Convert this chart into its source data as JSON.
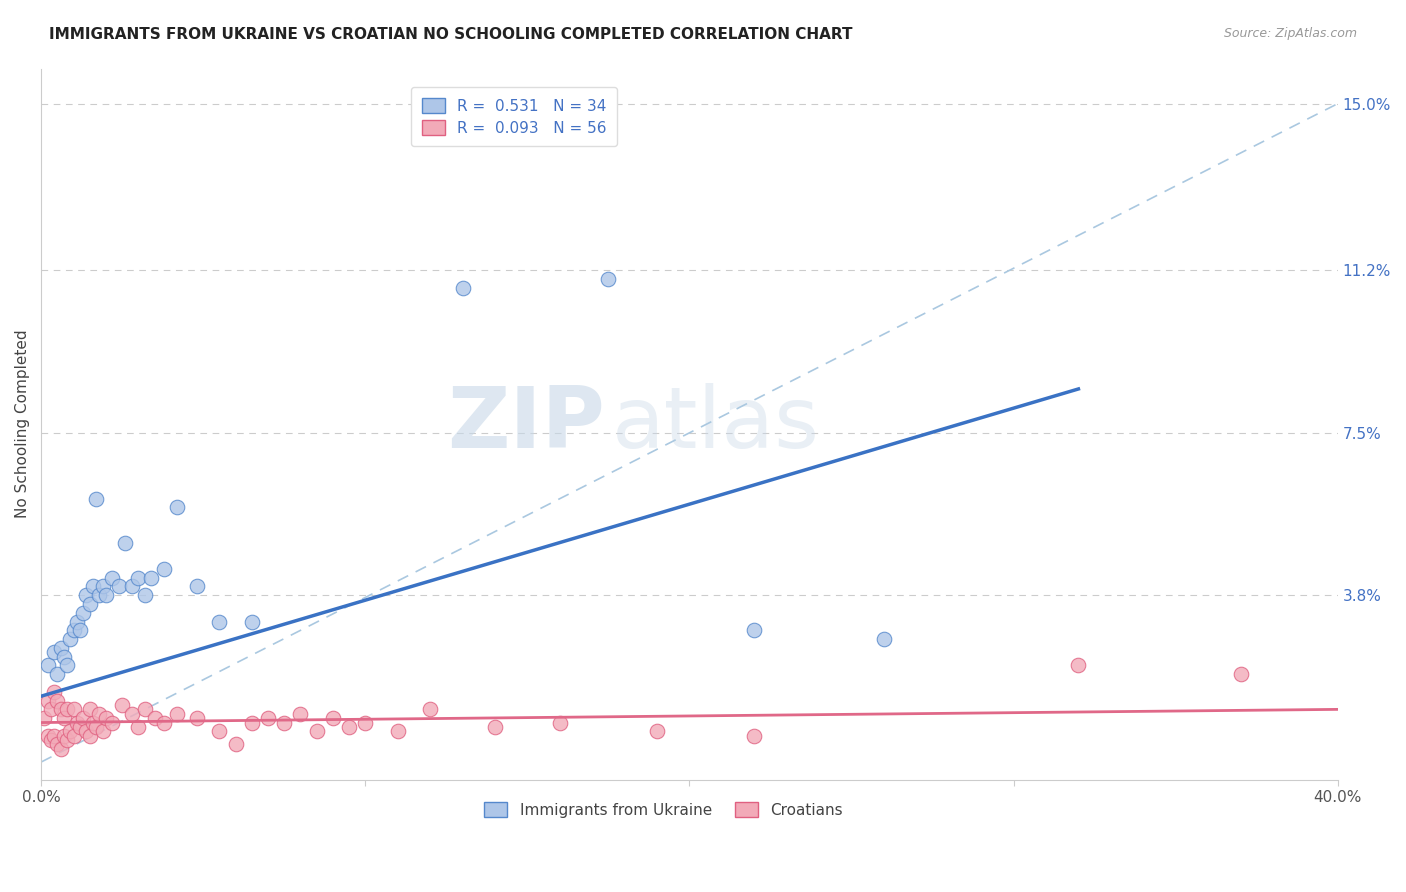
{
  "title": "IMMIGRANTS FROM UKRAINE VS CROATIAN NO SCHOOLING COMPLETED CORRELATION CHART",
  "source": "Source: ZipAtlas.com",
  "ylabel": "No Schooling Completed",
  "xlim": [
    0.0,
    0.4
  ],
  "ylim": [
    -0.004,
    0.158
  ],
  "right_yticks": [
    0.0,
    0.038,
    0.075,
    0.112,
    0.15
  ],
  "right_yticklabels": [
    "",
    "3.8%",
    "7.5%",
    "11.2%",
    "15.0%"
  ],
  "grid_yticks": [
    0.038,
    0.075,
    0.112,
    0.15
  ],
  "legend_R1": "0.531",
  "legend_N1": "34",
  "legend_R2": "0.093",
  "legend_N2": "56",
  "color_ukraine": "#aec6e8",
  "color_croatia": "#f2aab8",
  "color_ukraine_edge": "#5588cc",
  "color_croatia_edge": "#e06080",
  "color_ukraine_line": "#3a72c4",
  "color_croatia_line": "#e06888",
  "color_dashed": "#aac8e0",
  "watermark_zip": "ZIP",
  "watermark_atlas": "atlas",
  "ukraine_x": [
    0.002,
    0.004,
    0.005,
    0.006,
    0.007,
    0.008,
    0.009,
    0.01,
    0.011,
    0.012,
    0.013,
    0.014,
    0.015,
    0.016,
    0.017,
    0.018,
    0.019,
    0.02,
    0.022,
    0.024,
    0.026,
    0.028,
    0.03,
    0.032,
    0.034,
    0.038,
    0.042,
    0.048,
    0.055,
    0.065,
    0.13,
    0.175,
    0.22,
    0.26
  ],
  "ukraine_y": [
    0.022,
    0.025,
    0.02,
    0.026,
    0.024,
    0.022,
    0.028,
    0.03,
    0.032,
    0.03,
    0.034,
    0.038,
    0.036,
    0.04,
    0.06,
    0.038,
    0.04,
    0.038,
    0.042,
    0.04,
    0.05,
    0.04,
    0.042,
    0.038,
    0.042,
    0.044,
    0.058,
    0.04,
    0.032,
    0.032,
    0.108,
    0.11,
    0.03,
    0.028
  ],
  "croatia_x": [
    0.001,
    0.002,
    0.002,
    0.003,
    0.003,
    0.004,
    0.004,
    0.005,
    0.005,
    0.006,
    0.006,
    0.007,
    0.007,
    0.008,
    0.008,
    0.009,
    0.01,
    0.01,
    0.011,
    0.012,
    0.013,
    0.014,
    0.015,
    0.015,
    0.016,
    0.017,
    0.018,
    0.019,
    0.02,
    0.022,
    0.025,
    0.028,
    0.03,
    0.032,
    0.035,
    0.038,
    0.042,
    0.048,
    0.055,
    0.06,
    0.065,
    0.07,
    0.075,
    0.08,
    0.085,
    0.09,
    0.095,
    0.1,
    0.11,
    0.12,
    0.14,
    0.16,
    0.19,
    0.22,
    0.32,
    0.37
  ],
  "croatia_y": [
    0.01,
    0.006,
    0.014,
    0.005,
    0.012,
    0.006,
    0.016,
    0.004,
    0.014,
    0.003,
    0.012,
    0.006,
    0.01,
    0.005,
    0.012,
    0.007,
    0.006,
    0.012,
    0.009,
    0.008,
    0.01,
    0.007,
    0.012,
    0.006,
    0.009,
    0.008,
    0.011,
    0.007,
    0.01,
    0.009,
    0.013,
    0.011,
    0.008,
    0.012,
    0.01,
    0.009,
    0.011,
    0.01,
    0.007,
    0.004,
    0.009,
    0.01,
    0.009,
    0.011,
    0.007,
    0.01,
    0.008,
    0.009,
    0.007,
    0.012,
    0.008,
    0.009,
    0.007,
    0.006,
    0.022,
    0.02
  ],
  "ukraine_line_x": [
    0.0,
    0.32
  ],
  "ukraine_line_y": [
    0.015,
    0.085
  ],
  "croatia_line_x": [
    0.0,
    0.4
  ],
  "croatia_line_y": [
    0.009,
    0.012
  ]
}
